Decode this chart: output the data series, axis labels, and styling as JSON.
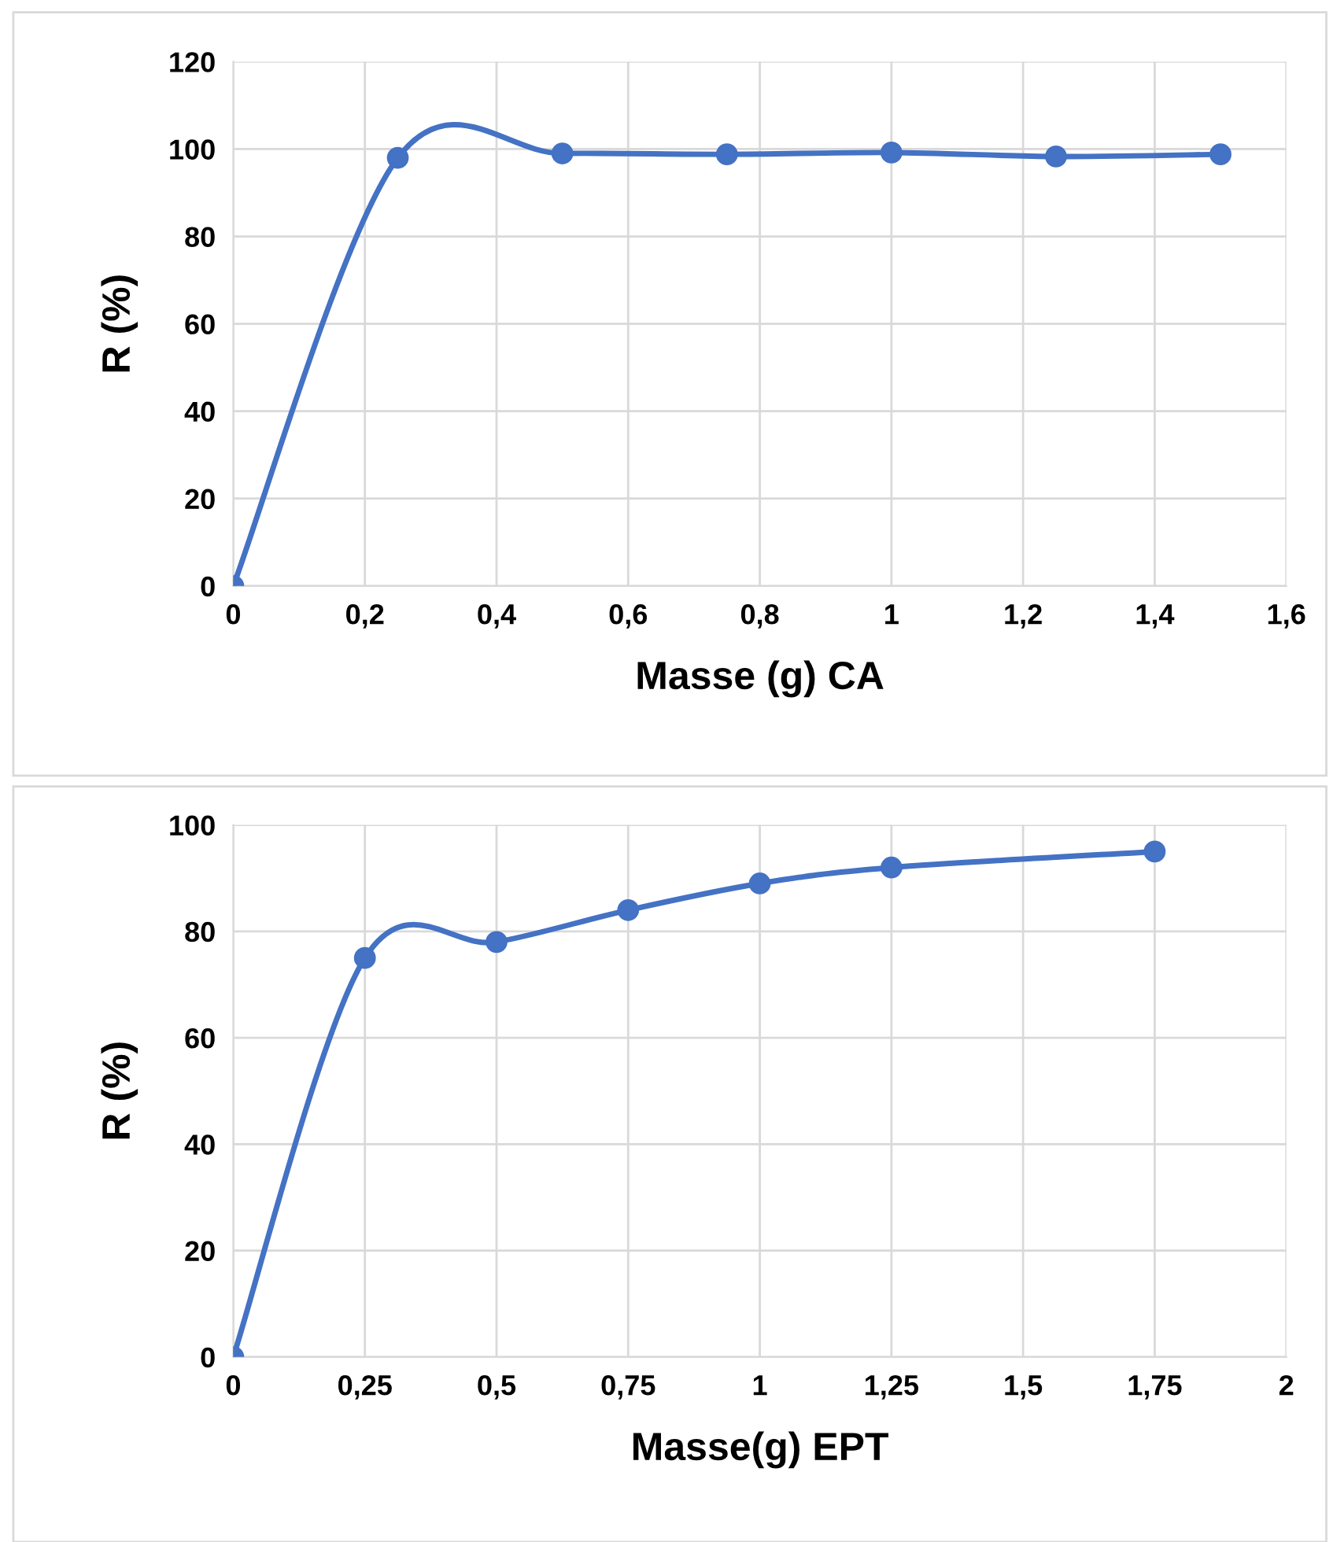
{
  "chart_data": [
    {
      "type": "line",
      "xlabel": "Masse (g) CA",
      "ylabel": "R (%)",
      "x": [
        0,
        0.25,
        0.5,
        0.75,
        1,
        1.25,
        1.5
      ],
      "series": [
        {
          "color": "#4472c4",
          "values": [
            0,
            98,
            99,
            98.8,
            99.2,
            98.3,
            98.8
          ]
        }
      ],
      "xlim": [
        0,
        1.6
      ],
      "xticks": [
        0,
        {
          "value": 0.2,
          "label": "0,2"
        },
        {
          "value": 0.4,
          "label": "0,4"
        },
        {
          "value": 0.6,
          "label": "0,6"
        },
        {
          "value": 0.8,
          "label": "0,8"
        },
        1,
        {
          "value": 1.2,
          "label": "1,2"
        },
        {
          "value": 1.4,
          "label": "1,4"
        },
        {
          "value": 1.6,
          "label": "1,6"
        }
      ],
      "ylim": [
        0,
        120
      ],
      "yticks": [
        0,
        20,
        40,
        60,
        80,
        100,
        120
      ],
      "grid": true,
      "marker": "circle",
      "line_style": "solid",
      "legend": false
    },
    {
      "type": "line",
      "xlabel": "Masse(g) EPT",
      "ylabel": "R (%)",
      "x": [
        0,
        0.25,
        0.5,
        0.75,
        1,
        1.25,
        1.75
      ],
      "series": [
        {
          "color": "#4472c4",
          "values": [
            0,
            75,
            78,
            84,
            89,
            92,
            95
          ]
        }
      ],
      "xlim": [
        0,
        2
      ],
      "xticks": [
        0,
        {
          "value": 0.25,
          "label": "0,25"
        },
        {
          "value": 0.5,
          "label": "0,5"
        },
        {
          "value": 0.75,
          "label": "0,75"
        },
        1,
        {
          "value": 1.25,
          "label": "1,25"
        },
        {
          "value": 1.5,
          "label": "1,5"
        },
        {
          "value": 1.75,
          "label": "1,75"
        },
        2
      ],
      "ylim": [
        0,
        100
      ],
      "yticks": [
        0,
        20,
        40,
        60,
        80,
        100
      ],
      "grid": true,
      "marker": "circle",
      "line_style": "solid",
      "legend": false
    }
  ]
}
